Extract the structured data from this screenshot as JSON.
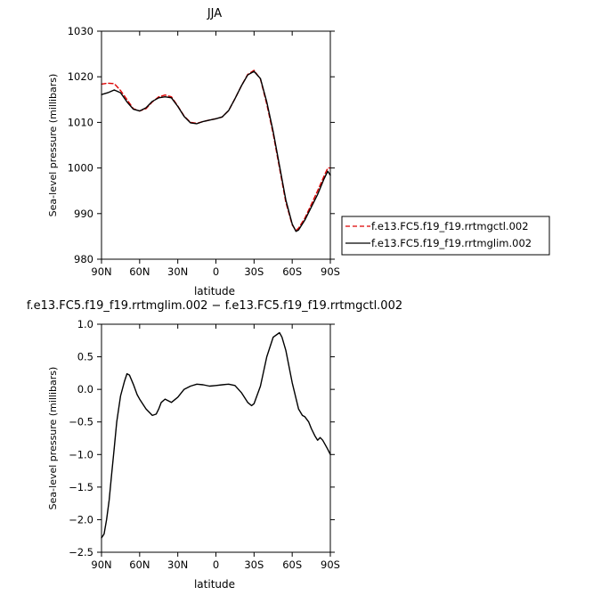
{
  "chart_data": [
    {
      "type": "line",
      "title": "JJA",
      "xlabel": "latitude",
      "ylabel": "Sea-level pressure (millibars)",
      "ylim": [
        980,
        1030
      ],
      "xlim": [
        90,
        -90
      ],
      "x_tick_values": [
        90,
        60,
        30,
        0,
        -30,
        -60,
        -90
      ],
      "x_tick_labels": [
        "90N",
        "60N",
        "30N",
        "0",
        "30S",
        "60S",
        "90S"
      ],
      "y_ticks": [
        980,
        990,
        1000,
        1010,
        1020,
        1030
      ],
      "y_tick_labels": [
        "980",
        "990",
        "1000",
        "1010",
        "1020",
        "1030"
      ],
      "legend_position": "right",
      "series": [
        {
          "name": "f.e13.FC5.f19_f19.rrtmgctl.002",
          "color": "#dd0000",
          "dash": "dashed",
          "x": [
            90,
            85,
            80,
            75,
            70,
            65,
            60,
            55,
            50,
            45,
            40,
            35,
            30,
            25,
            20,
            15,
            10,
            5,
            0,
            -5,
            -10,
            -15,
            -20,
            -25,
            -30,
            -35,
            -40,
            -45,
            -50,
            -55,
            -60,
            -63,
            -65,
            -70,
            -75,
            -80,
            -85,
            -88,
            -90
          ],
          "y": [
            1018.4,
            1018.6,
            1018.5,
            1017.0,
            1015.0,
            1013.0,
            1012.5,
            1013.0,
            1014.5,
            1015.6,
            1016.0,
            1015.6,
            1013.6,
            1011.4,
            1010.0,
            1009.8,
            1010.2,
            1010.5,
            1010.8,
            1011.2,
            1012.6,
            1015.2,
            1018.0,
            1020.5,
            1021.4,
            1019.5,
            1014.0,
            1007.5,
            1000.0,
            992.5,
            987.5,
            986.3,
            986.8,
            989.0,
            992.0,
            995.0,
            998.2,
            1000.0,
            1000.0
          ]
        },
        {
          "name": "f.e13.FC5.f19_f19.rrtmglim.002",
          "color": "#000000",
          "dash": "solid",
          "x": [
            90,
            85,
            80,
            75,
            70,
            65,
            60,
            55,
            50,
            45,
            40,
            35,
            30,
            25,
            20,
            15,
            10,
            5,
            0,
            -5,
            -10,
            -15,
            -20,
            -25,
            -30,
            -35,
            -40,
            -45,
            -50,
            -55,
            -60,
            -63,
            -65,
            -70,
            -75,
            -80,
            -85,
            -88,
            -90
          ],
          "y": [
            1016.1,
            1016.5,
            1017.1,
            1016.5,
            1014.5,
            1012.9,
            1012.5,
            1013.2,
            1014.6,
            1015.4,
            1015.6,
            1015.4,
            1013.5,
            1011.3,
            1009.9,
            1009.7,
            1010.2,
            1010.5,
            1010.8,
            1011.2,
            1012.6,
            1015.2,
            1018.0,
            1020.4,
            1021.2,
            1019.6,
            1014.5,
            1008.0,
            1000.5,
            993.0,
            987.7,
            986.1,
            986.4,
            988.6,
            991.4,
            994.2,
            997.6,
            999.3,
            998.4
          ]
        }
      ]
    },
    {
      "type": "line",
      "title": "f.e13.FC5.f19_f19.rrtmglim.002 − f.e13.FC5.f19_f19.rrtmgctl.002",
      "xlabel": "latitude",
      "ylabel": "Sea-level pressure (millibars)",
      "ylim": [
        -2.5,
        1.0
      ],
      "xlim": [
        90,
        -90
      ],
      "x_tick_values": [
        90,
        60,
        30,
        0,
        -30,
        -60,
        -90
      ],
      "x_tick_labels": [
        "90N",
        "60N",
        "30N",
        "0",
        "30S",
        "60S",
        "90S"
      ],
      "y_ticks": [
        -2.5,
        -2.0,
        -1.5,
        -1.0,
        -0.5,
        0.0,
        0.5,
        1.0
      ],
      "y_tick_labels": [
        "−2.5",
        "−2.0",
        "−1.5",
        "−1.0",
        "−0.5",
        "0.0",
        "0.5",
        "1.0"
      ],
      "series": [
        {
          "color": "#000000",
          "dash": "solid",
          "x": [
            90,
            88,
            86,
            84,
            82,
            80,
            78,
            75,
            72,
            70,
            68,
            65,
            62,
            60,
            55,
            50,
            47,
            45,
            43,
            40,
            35,
            30,
            25,
            20,
            15,
            10,
            5,
            0,
            -5,
            -10,
            -15,
            -20,
            -25,
            -28,
            -30,
            -35,
            -40,
            -45,
            -50,
            -52,
            -55,
            -60,
            -65,
            -68,
            -70,
            -73,
            -75,
            -78,
            -80,
            -82,
            -84,
            -86,
            -88,
            -90
          ],
          "y": [
            -2.28,
            -2.22,
            -2.0,
            -1.7,
            -1.3,
            -0.9,
            -0.5,
            -0.1,
            0.12,
            0.24,
            0.22,
            0.08,
            -0.08,
            -0.15,
            -0.3,
            -0.4,
            -0.38,
            -0.3,
            -0.2,
            -0.15,
            -0.2,
            -0.12,
            0.0,
            0.05,
            0.08,
            0.07,
            0.05,
            0.06,
            0.07,
            0.08,
            0.06,
            -0.05,
            -0.2,
            -0.25,
            -0.22,
            0.05,
            0.5,
            0.8,
            0.87,
            0.8,
            0.6,
            0.1,
            -0.3,
            -0.4,
            -0.42,
            -0.5,
            -0.6,
            -0.72,
            -0.78,
            -0.74,
            -0.78,
            -0.85,
            -0.92,
            -1.0
          ]
        }
      ]
    }
  ]
}
